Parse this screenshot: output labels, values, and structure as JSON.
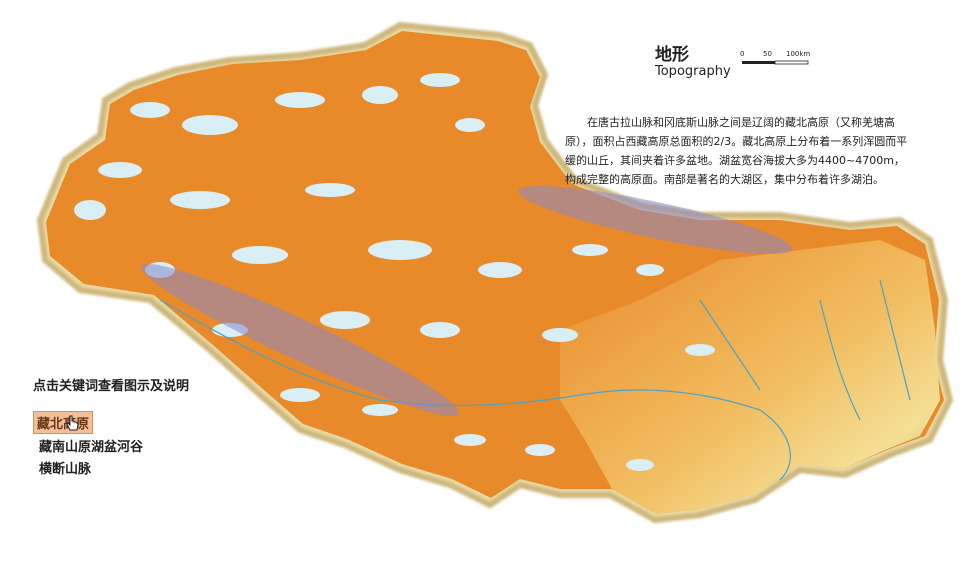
{
  "map": {
    "title_zh": "地形",
    "title_en": "Topography",
    "scale": {
      "labels": [
        "0",
        "50",
        "100km"
      ]
    },
    "description": "在唐古拉山脉和冈底斯山脉之间是辽阔的藏北高原（又称羌塘高原），面积占西藏高原总面积的2/3。藏北高原上分布着一系列浑圆而平缓的山丘，其间夹着许多盆地。湖盆宽谷海拔大多为4400~4700m，构成完整的高原面。南部是著名的大湖区，集中分布着许多湖泊。",
    "colors": {
      "plateau": "#e8892a",
      "lowland": "#f5d27a",
      "valley": "#9fcf7a",
      "lake": "#d4ecf3",
      "border": "#d8c080",
      "highlight": "#8b86c6"
    }
  },
  "panel": {
    "prompt": "点击关键词查看图示及说明",
    "keywords": [
      {
        "label": "藏北高原",
        "active": true
      },
      {
        "label": "藏南山原湖盆河谷",
        "active": false
      },
      {
        "label": "横断山脉",
        "active": false
      }
    ]
  }
}
